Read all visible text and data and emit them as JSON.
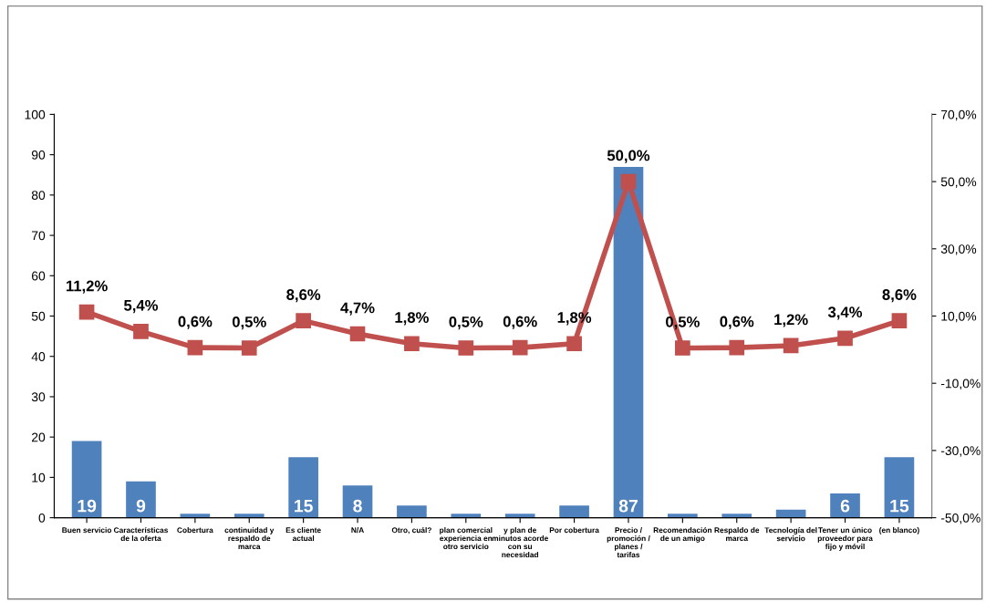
{
  "chart_data": {
    "type": "bar",
    "categories": [
      "Buen servicio",
      "Características de la oferta",
      "Cobertura",
      "continuidad y respaldo de marca",
      "Es cliente actual",
      "N/A",
      "Otro, cuál?",
      "plan comercial experiencia en otro servicio",
      "y plan de minutos acorde con su necesidad",
      "Por cobertura",
      "Precio / promoción / planes / tarifas",
      "Recomendación de un amigo",
      "Respaldo de marca",
      "Tecnología del servicio",
      "Tener un único proveedor para fijo y móvil",
      "(en blanco)"
    ],
    "series": [
      {
        "color": "#4f81bd",
        "values": [
          19,
          9,
          1,
          1,
          15,
          8,
          3,
          1,
          1,
          3,
          87,
          1,
          1,
          2,
          6,
          15
        ],
        "value_labels": [
          "19",
          "9",
          null,
          null,
          "15",
          "8",
          null,
          null,
          null,
          null,
          "87",
          null,
          null,
          null,
          "6",
          "15"
        ]
      },
      {
        "type": "line",
        "axis": "y2",
        "color": "#c0504d",
        "marker": "square",
        "values": [
          11.2,
          5.4,
          0.6,
          0.5,
          8.6,
          4.7,
          1.8,
          0.5,
          0.6,
          1.8,
          50.0,
          0.5,
          0.6,
          1.2,
          3.4,
          8.6
        ],
        "value_labels": [
          "11,2%",
          "5,4%",
          "0,6%",
          "0,5%",
          "8,6%",
          "4,7%",
          "1,8%",
          "0,5%",
          "0,6%",
          "1,8%",
          "50,0%",
          "0,5%",
          "0,6%",
          "1,2%",
          "3,4%",
          "8,6%"
        ]
      }
    ],
    "ylim": [
      0,
      100
    ],
    "yticks": [
      0,
      10,
      20,
      30,
      40,
      50,
      60,
      70,
      80,
      90,
      100
    ],
    "y2lim": [
      -50,
      70
    ],
    "y2ticks": [
      {
        "value": -50,
        "label": "-50,0%"
      },
      {
        "value": -30,
        "label": "-30,0%"
      },
      {
        "value": -10,
        "label": "-10,0%"
      },
      {
        "value": 10,
        "label": "10,0%"
      },
      {
        "value": 30,
        "label": "30,0%"
      },
      {
        "value": 50,
        "label": "50,0%"
      },
      {
        "value": 70,
        "label": "70,0%"
      }
    ],
    "grid": false,
    "legend": false
  }
}
